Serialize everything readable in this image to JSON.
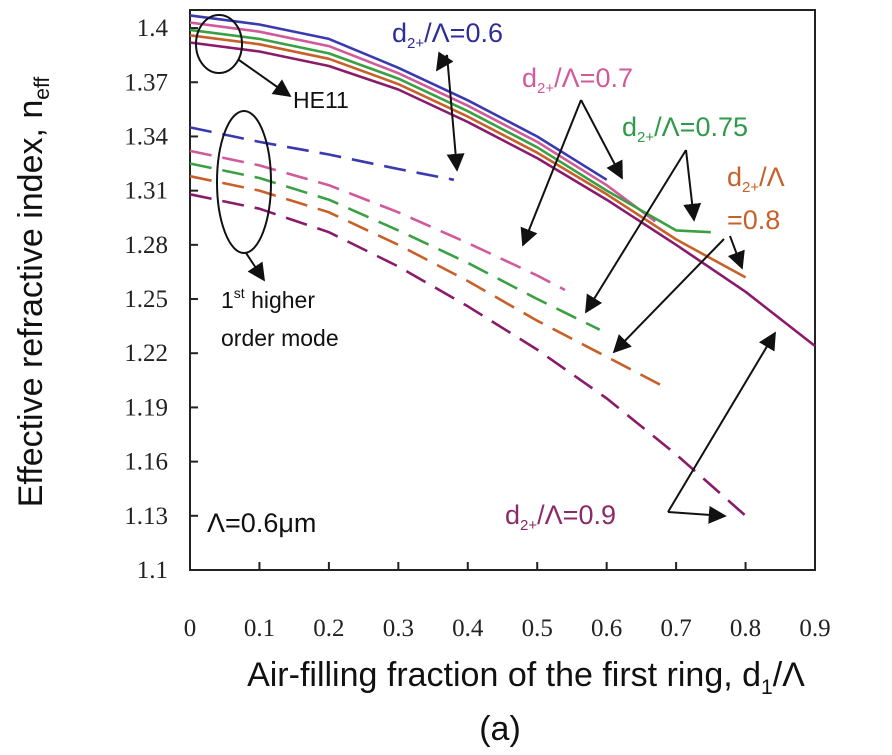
{
  "chart_data": {
    "type": "line",
    "xlabel": "Air-filling fraction of the first ring, d",
    "xlabel_sub": "1",
    "xlabel_end": "/Λ",
    "ylabel": "Effective refractive index, n",
    "ylabel_sub": "eff",
    "caption": "(a)",
    "xlim": [
      0,
      0.9
    ],
    "ylim": [
      1.1,
      1.41
    ],
    "x_ticks": [
      "0",
      "0.1",
      "0.2",
      "0.3",
      "0.4",
      "0.5",
      "0.6",
      "0.7",
      "0.8",
      "0.9"
    ],
    "y_ticks": [
      "1.1",
      "1.13",
      "1.16",
      "1.19",
      "1.22",
      "1.25",
      "1.28",
      "1.31",
      "1.34",
      "1.37",
      "1.4"
    ],
    "grid": false,
    "series": [
      {
        "color": "#3a3ab0",
        "style": "solid",
        "x": [
          0,
          0.1,
          0.2,
          0.3,
          0.4,
          0.5,
          0.6
        ],
        "y": [
          1.407,
          1.402,
          1.394,
          1.378,
          1.36,
          1.34,
          1.316
        ]
      },
      {
        "color": "#d05a9a",
        "style": "solid",
        "x": [
          0,
          0.1,
          0.2,
          0.3,
          0.4,
          0.5,
          0.6,
          0.67
        ],
        "y": [
          1.403,
          1.398,
          1.39,
          1.375,
          1.357,
          1.337,
          1.313,
          1.293
        ]
      },
      {
        "color": "#3aa043",
        "style": "solid",
        "x": [
          0,
          0.1,
          0.2,
          0.3,
          0.4,
          0.5,
          0.6,
          0.7,
          0.75
        ],
        "y": [
          1.399,
          1.394,
          1.386,
          1.372,
          1.354,
          1.334,
          1.31,
          1.288,
          1.287
        ]
      },
      {
        "color": "#c8602a",
        "style": "solid",
        "x": [
          0,
          0.1,
          0.2,
          0.3,
          0.4,
          0.5,
          0.6,
          0.7,
          0.8
        ],
        "y": [
          1.396,
          1.391,
          1.383,
          1.369,
          1.351,
          1.331,
          1.308,
          1.283,
          1.262
        ]
      },
      {
        "color": "#8a1a6a",
        "style": "solid",
        "x": [
          0,
          0.1,
          0.2,
          0.3,
          0.4,
          0.5,
          0.6,
          0.7,
          0.8,
          0.9
        ],
        "y": [
          1.392,
          1.387,
          1.379,
          1.366,
          1.348,
          1.328,
          1.305,
          1.28,
          1.254,
          1.224
        ]
      },
      {
        "color": "#3a3ab0",
        "style": "dashed",
        "x": [
          0,
          0.1,
          0.2,
          0.3,
          0.38
        ],
        "y": [
          1.345,
          1.337,
          1.33,
          1.322,
          1.316
        ]
      },
      {
        "color": "#d05a9a",
        "style": "dashed",
        "x": [
          0,
          0.1,
          0.2,
          0.3,
          0.4,
          0.5,
          0.54
        ],
        "y": [
          1.332,
          1.324,
          1.313,
          1.298,
          1.281,
          1.263,
          1.255
        ]
      },
      {
        "color": "#3aa043",
        "style": "dashed",
        "x": [
          0,
          0.1,
          0.2,
          0.3,
          0.4,
          0.5,
          0.59
        ],
        "y": [
          1.325,
          1.317,
          1.305,
          1.288,
          1.27,
          1.25,
          1.233
        ]
      },
      {
        "color": "#c8602a",
        "style": "dashed",
        "x": [
          0,
          0.1,
          0.2,
          0.3,
          0.4,
          0.5,
          0.6,
          0.69
        ],
        "y": [
          1.318,
          1.31,
          1.298,
          1.28,
          1.26,
          1.238,
          1.218,
          1.2
        ]
      },
      {
        "color": "#8a1a6a",
        "style": "dashed",
        "x": [
          0,
          0.1,
          0.2,
          0.3,
          0.4,
          0.5,
          0.6,
          0.7,
          0.8
        ],
        "y": [
          1.308,
          1.3,
          1.287,
          1.268,
          1.246,
          1.222,
          1.195,
          1.164,
          1.13
        ]
      }
    ],
    "annotations": [
      {
        "text": "d",
        "sub": "2+",
        "rest": "/Λ=0.6",
        "color": "#2e2e9a"
      },
      {
        "text": "d",
        "sub": "2+",
        "rest": "/Λ=0.7",
        "color": "#d05a9a"
      },
      {
        "text": "d",
        "sub": "2+",
        "rest": "/Λ=0.75",
        "color": "#2f9a4a"
      },
      {
        "text": "d",
        "sub": "2+",
        "rest": "/Λ",
        "color": "#c8602a"
      },
      {
        "text": "=0.8",
        "color": "#c8602a"
      },
      {
        "text": "d",
        "sub": "2+",
        "rest": "/Λ=0.9",
        "color": "#8a2a6a"
      },
      {
        "text": "HE11",
        "color": "#111111"
      },
      {
        "text": "1",
        "sup": "st",
        "rest": " higher",
        "color": "#111111"
      },
      {
        "text": "order mode",
        "color": "#111111"
      },
      {
        "text": "Λ=0.6μm",
        "color": "#111111"
      }
    ]
  }
}
